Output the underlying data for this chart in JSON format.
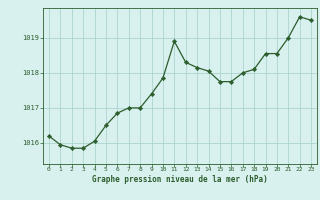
{
  "x": [
    0,
    1,
    2,
    3,
    4,
    5,
    6,
    7,
    8,
    9,
    10,
    11,
    12,
    13,
    14,
    15,
    16,
    17,
    18,
    19,
    20,
    21,
    22,
    23
  ],
  "y": [
    1016.2,
    1015.95,
    1015.85,
    1015.85,
    1016.05,
    1016.5,
    1016.85,
    1017.0,
    1017.0,
    1017.4,
    1017.85,
    1018.9,
    1018.3,
    1018.15,
    1018.05,
    1017.75,
    1017.75,
    1018.0,
    1018.1,
    1018.55,
    1018.55,
    1019.0,
    1019.6,
    1019.5
  ],
  "line_color": "#2d5e2d",
  "marker": "D",
  "marker_size": 2.2,
  "bg_color": "#d8f0ee",
  "grid_color": "#aed4d0",
  "xlabel": "Graphe pression niveau de la mer (hPa)",
  "xlabel_color": "#2d5e2d",
  "tick_color": "#2d5e2d",
  "ylim": [
    1015.4,
    1019.85
  ],
  "yticks": [
    1016,
    1017,
    1018,
    1019
  ],
  "xlim": [
    -0.5,
    23.5
  ],
  "xticks": [
    0,
    1,
    2,
    3,
    4,
    5,
    6,
    7,
    8,
    9,
    10,
    11,
    12,
    13,
    14,
    15,
    16,
    17,
    18,
    19,
    20,
    21,
    22,
    23
  ]
}
